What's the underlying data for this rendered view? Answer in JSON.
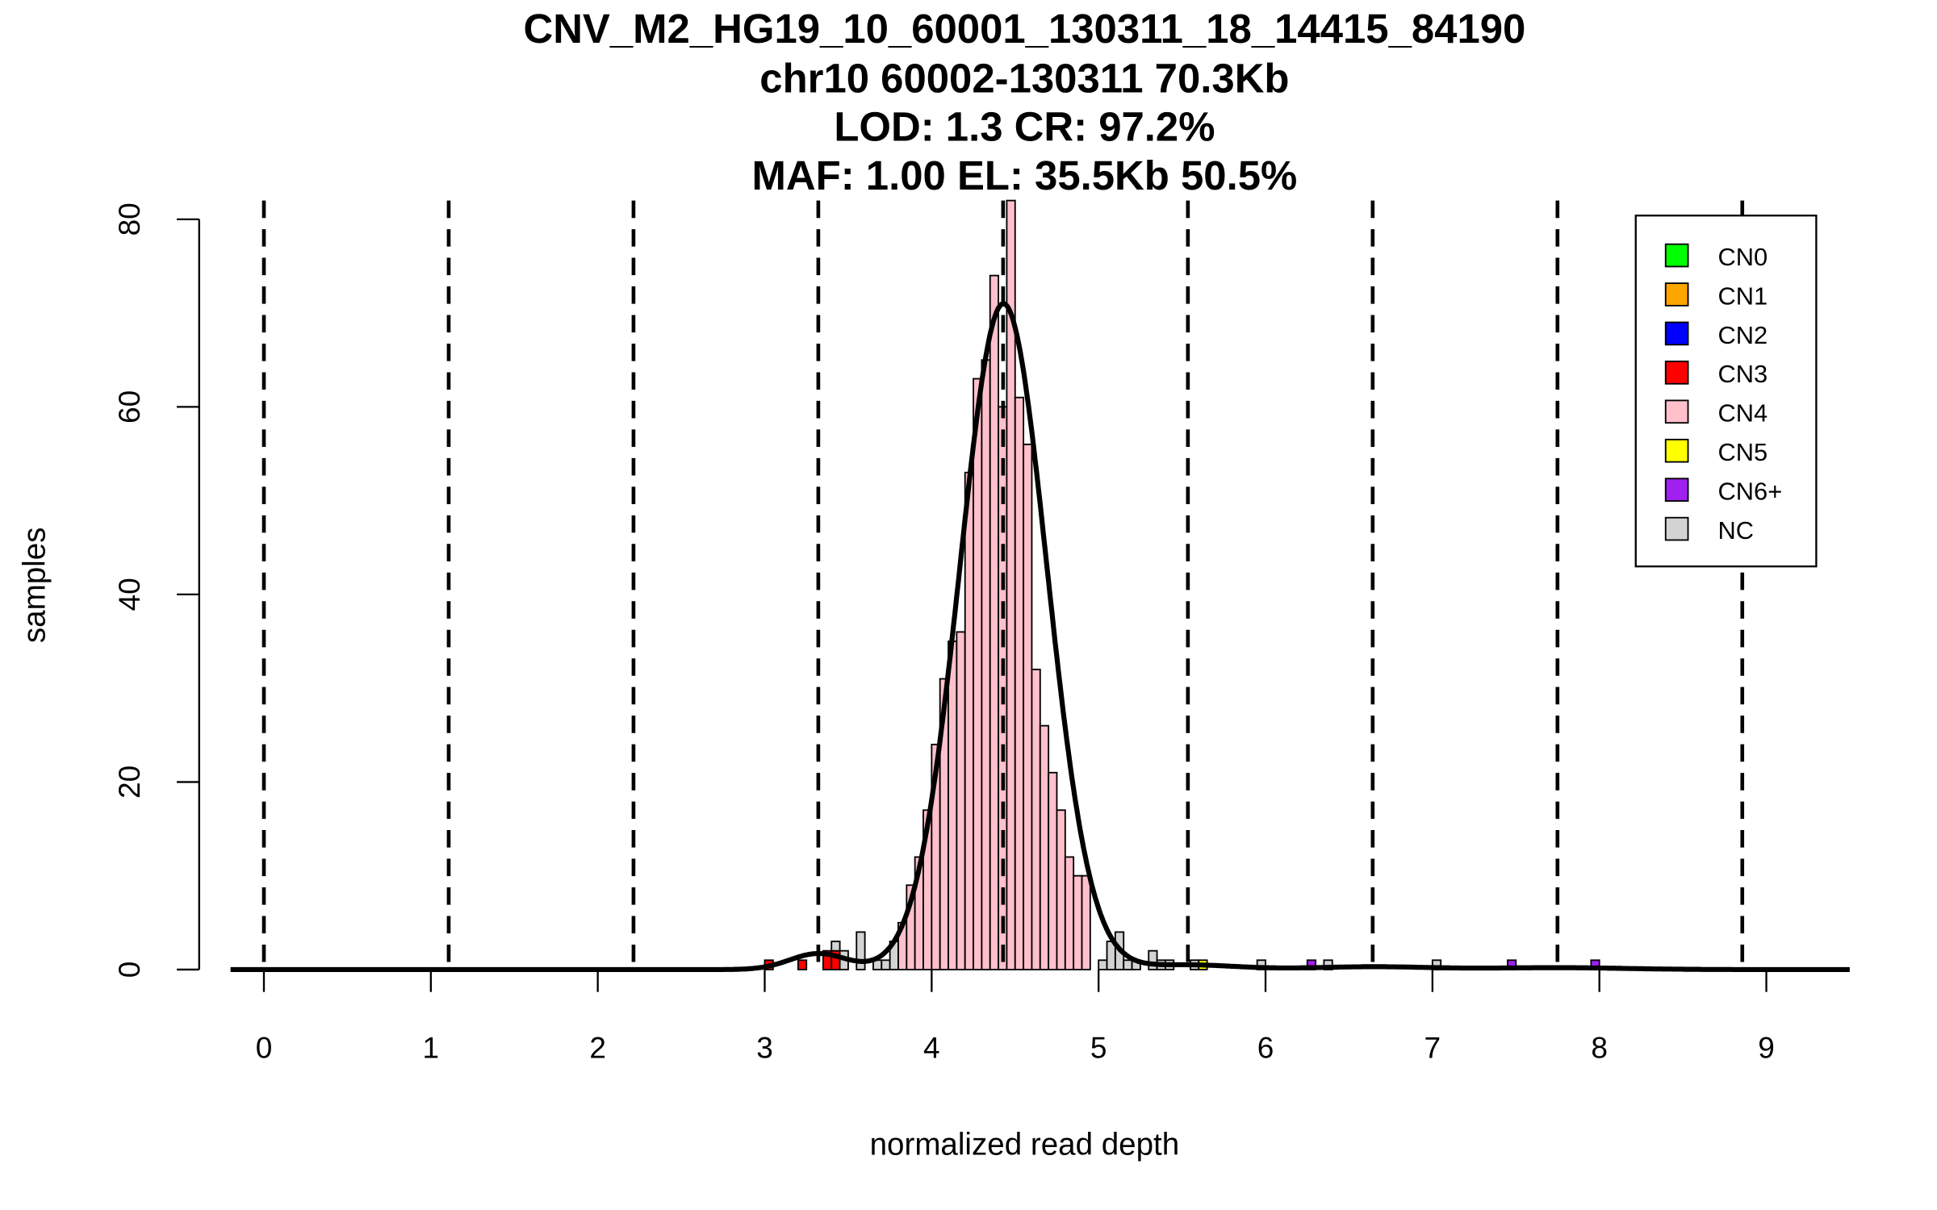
{
  "chart_data": {
    "type": "bar",
    "title_lines": [
      "CNV_M2_HG19_10_60001_130311_18_14415_84190",
      "chr10 60002-130311 70.3Kb",
      "LOD: 1.3 CR: 97.2%",
      "MAF: 1.00 EL: 35.5Kb 50.5%"
    ],
    "xlabel": "normalized read depth",
    "ylabel": "samples",
    "xlim": [
      -0.2,
      9.5
    ],
    "ylim": [
      0,
      80
    ],
    "x_ticks": [
      "0",
      "1",
      "2",
      "3",
      "4",
      "5",
      "6",
      "7",
      "8",
      "9"
    ],
    "y_ticks": [
      "0",
      "20",
      "40",
      "60",
      "80"
    ],
    "bin_width": 0.05,
    "legend": {
      "placement": "top-right",
      "entries": [
        {
          "label": "CN0",
          "color": "#00ff00"
        },
        {
          "label": "CN1",
          "color": "#ffa500"
        },
        {
          "label": "CN2",
          "color": "#0000ff"
        },
        {
          "label": "CN3",
          "color": "#ff0000"
        },
        {
          "label": "CN4",
          "color": "#ffc0cb"
        },
        {
          "label": "CN5",
          "color": "#ffff00"
        },
        {
          "label": "CN6+",
          "color": "#a020f0"
        },
        {
          "label": "NC",
          "color": "#d3d3d3"
        }
      ]
    },
    "bars": [
      {
        "x0": 3.0,
        "class": "CN3",
        "count": 1
      },
      {
        "x0": 3.2,
        "class": "CN3",
        "count": 1
      },
      {
        "x0": 3.35,
        "class": "CN3",
        "count": 2
      },
      {
        "x0": 3.4,
        "class": "CN3",
        "count": 2
      },
      {
        "x0": 3.4,
        "class": "NC",
        "count": 1
      },
      {
        "x0": 3.45,
        "class": "NC",
        "count": 2
      },
      {
        "x0": 3.55,
        "class": "NC",
        "count": 4
      },
      {
        "x0": 3.65,
        "class": "NC",
        "count": 1
      },
      {
        "x0": 3.7,
        "class": "NC",
        "count": 1
      },
      {
        "x0": 3.75,
        "class": "NC",
        "count": 3
      },
      {
        "x0": 3.8,
        "class": "CN4",
        "count": 5
      },
      {
        "x0": 3.85,
        "class": "CN4",
        "count": 9
      },
      {
        "x0": 3.9,
        "class": "CN4",
        "count": 12
      },
      {
        "x0": 3.95,
        "class": "CN4",
        "count": 17
      },
      {
        "x0": 4.0,
        "class": "CN4",
        "count": 24
      },
      {
        "x0": 4.05,
        "class": "CN4",
        "count": 31
      },
      {
        "x0": 4.1,
        "class": "CN4",
        "count": 35
      },
      {
        "x0": 4.15,
        "class": "CN4",
        "count": 36
      },
      {
        "x0": 4.2,
        "class": "CN4",
        "count": 53
      },
      {
        "x0": 4.25,
        "class": "CN4",
        "count": 63
      },
      {
        "x0": 4.3,
        "class": "CN4",
        "count": 65
      },
      {
        "x0": 4.35,
        "class": "CN4",
        "count": 74
      },
      {
        "x0": 4.4,
        "class": "CN4",
        "count": 60
      },
      {
        "x0": 4.45,
        "class": "CN4",
        "count": 82
      },
      {
        "x0": 4.5,
        "class": "CN4",
        "count": 61
      },
      {
        "x0": 4.55,
        "class": "CN4",
        "count": 56
      },
      {
        "x0": 4.6,
        "class": "CN4",
        "count": 32
      },
      {
        "x0": 4.65,
        "class": "CN4",
        "count": 26
      },
      {
        "x0": 4.7,
        "class": "CN4",
        "count": 21
      },
      {
        "x0": 4.75,
        "class": "CN4",
        "count": 17
      },
      {
        "x0": 4.8,
        "class": "CN4",
        "count": 12
      },
      {
        "x0": 4.85,
        "class": "CN4",
        "count": 10
      },
      {
        "x0": 4.9,
        "class": "CN4",
        "count": 10
      },
      {
        "x0": 5.0,
        "class": "NC",
        "count": 1
      },
      {
        "x0": 5.05,
        "class": "NC",
        "count": 3
      },
      {
        "x0": 5.1,
        "class": "NC",
        "count": 4
      },
      {
        "x0": 5.15,
        "class": "NC",
        "count": 1
      },
      {
        "x0": 5.2,
        "class": "NC",
        "count": 1
      },
      {
        "x0": 5.3,
        "class": "NC",
        "count": 2
      },
      {
        "x0": 5.35,
        "class": "NC",
        "count": 1
      },
      {
        "x0": 5.4,
        "class": "NC",
        "count": 1
      },
      {
        "x0": 5.55,
        "class": "NC",
        "count": 1
      },
      {
        "x0": 5.6,
        "class": "CN5",
        "count": 1
      },
      {
        "x0": 5.95,
        "class": "NC",
        "count": 1
      },
      {
        "x0": 6.25,
        "class": "CN6+",
        "count": 1
      },
      {
        "x0": 6.35,
        "class": "NC",
        "count": 1
      },
      {
        "x0": 7.0,
        "class": "NC",
        "count": 1
      },
      {
        "x0": 7.45,
        "class": "CN6+",
        "count": 1
      },
      {
        "x0": 7.95,
        "class": "CN6+",
        "count": 1
      }
    ],
    "copy_number_lines": [
      0,
      1.107,
      2.214,
      3.321,
      4.428,
      5.535,
      6.642,
      7.749,
      8.856
    ],
    "density_components": [
      {
        "mean": 3.32,
        "height": 1.7,
        "sd": 0.17
      },
      {
        "mean": 4.43,
        "height": 71,
        "sd": 0.26
      },
      {
        "mean": 5.53,
        "height": 0.5,
        "sd": 0.3
      },
      {
        "mean": 6.64,
        "height": 0.3,
        "sd": 0.35
      },
      {
        "mean": 7.75,
        "height": 0.2,
        "sd": 0.4
      }
    ]
  }
}
